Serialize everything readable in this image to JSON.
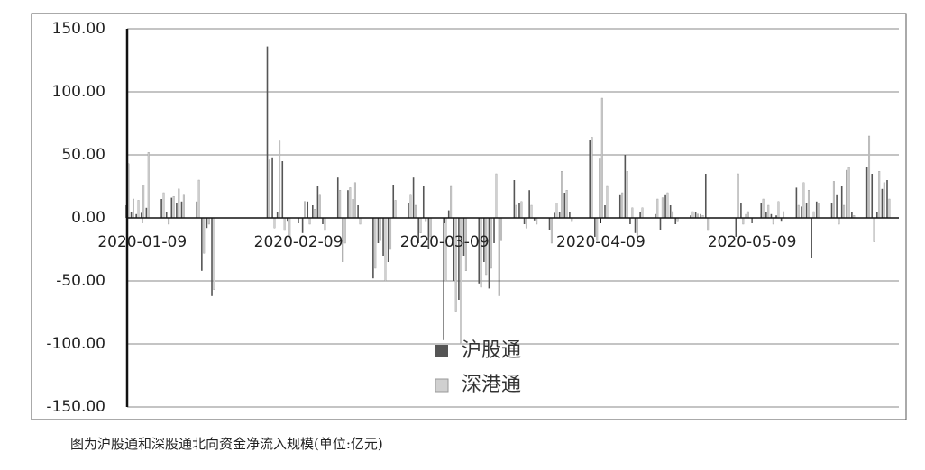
{
  "chart_data": {
    "type": "bar",
    "x": [
      "2020-01-06",
      "2020-01-07",
      "2020-01-08",
      "2020-01-09",
      "2020-01-10",
      "2020-01-13",
      "2020-01-14",
      "2020-01-15",
      "2020-01-16",
      "2020-01-17",
      "2020-01-20",
      "2020-01-21",
      "2020-01-22",
      "2020-01-23",
      "2020-02-03",
      "2020-02-04",
      "2020-02-05",
      "2020-02-06",
      "2020-02-07",
      "2020-02-10",
      "2020-02-11",
      "2020-02-12",
      "2020-02-13",
      "2020-02-14",
      "2020-02-17",
      "2020-02-18",
      "2020-02-19",
      "2020-02-20",
      "2020-02-21",
      "2020-02-24",
      "2020-02-25",
      "2020-02-26",
      "2020-02-27",
      "2020-02-28",
      "2020-03-02",
      "2020-03-03",
      "2020-03-04",
      "2020-03-05",
      "2020-03-06",
      "2020-03-09",
      "2020-03-10",
      "2020-03-11",
      "2020-03-12",
      "2020-03-13",
      "2020-03-16",
      "2020-03-17",
      "2020-03-18",
      "2020-03-19",
      "2020-03-20",
      "2020-03-23",
      "2020-03-24",
      "2020-03-25",
      "2020-03-26",
      "2020-03-27",
      "2020-03-30",
      "2020-03-31",
      "2020-04-01",
      "2020-04-02",
      "2020-04-03",
      "2020-04-07",
      "2020-04-08",
      "2020-04-09",
      "2020-04-10",
      "2020-04-13",
      "2020-04-14",
      "2020-04-15",
      "2020-04-16",
      "2020-04-17",
      "2020-04-20",
      "2020-04-21",
      "2020-04-22",
      "2020-04-23",
      "2020-04-24",
      "2020-04-27",
      "2020-04-28",
      "2020-04-29",
      "2020-04-30",
      "2020-05-06",
      "2020-05-07",
      "2020-05-08",
      "2020-05-11",
      "2020-05-12",
      "2020-05-13",
      "2020-05-14",
      "2020-05-15",
      "2020-05-18",
      "2020-05-19",
      "2020-05-20",
      "2020-05-21",
      "2020-05-22",
      "2020-05-25",
      "2020-05-26",
      "2020-05-27",
      "2020-05-28",
      "2020-05-29",
      "2020-06-01",
      "2020-06-02",
      "2020-06-03",
      "2020-06-04",
      "2020-06-05"
    ],
    "series": [
      {
        "name": "沪股通",
        "color": "#555555",
        "values": [
          10,
          5,
          3,
          4,
          8,
          15,
          5,
          16,
          12,
          13,
          13,
          -42,
          -8,
          -62,
          136,
          48,
          5,
          45,
          -3,
          -12,
          13,
          10,
          25,
          -5,
          32,
          -35,
          22,
          15,
          10,
          -48,
          -20,
          -30,
          -35,
          26,
          12,
          32,
          -20,
          25,
          -25,
          -97,
          6,
          -50,
          -65,
          -30,
          -52,
          -35,
          -56,
          -20,
          -62,
          30,
          12,
          -5,
          22,
          -2,
          -10,
          4,
          5,
          20,
          5,
          62,
          -15,
          47,
          10,
          18,
          50,
          -5,
          -12,
          5,
          3,
          -10,
          18,
          10,
          -5,
          2,
          5,
          3,
          35,
          -15,
          12,
          3,
          12,
          5,
          3,
          2,
          -3,
          24,
          9,
          12,
          -32,
          13,
          12,
          18,
          25,
          38,
          5,
          40,
          35,
          5,
          23,
          30
        ]
      },
      {
        "name": "深港通",
        "color": "#d0d0d0",
        "values": [
          43,
          15,
          14,
          26,
          52,
          20,
          -5,
          17,
          23,
          18,
          30,
          -28,
          -5,
          -57,
          46,
          -8,
          61,
          -10,
          -15,
          13,
          -5,
          7,
          18,
          -10,
          22,
          -20,
          24,
          28,
          -5,
          -40,
          -18,
          -50,
          -25,
          14,
          18,
          10,
          -12,
          -3,
          -15,
          -50,
          25,
          -74,
          -100,
          -42,
          -55,
          -45,
          -40,
          35,
          -18,
          10,
          13,
          -8,
          10,
          -5,
          -20,
          12,
          37,
          22,
          -3,
          64,
          -18,
          95,
          25,
          20,
          37,
          8,
          -15,
          8,
          15,
          16,
          20,
          5,
          -3,
          5,
          3,
          2,
          -10,
          35,
          -5,
          5,
          15,
          10,
          -5,
          13,
          5,
          10,
          28,
          22,
          5,
          12,
          29,
          -5,
          10,
          40,
          2,
          65,
          -19,
          37,
          28,
          15
        ]
      }
    ],
    "xlim": [
      "2020-01-06",
      "2020-06-05"
    ],
    "xticks": [
      "2020-01-09",
      "2020-02-09",
      "2020-03-09",
      "2020-04-09",
      "2020-05-09"
    ],
    "ylim": [
      -150,
      150
    ],
    "yticks": [
      {
        "value": -150,
        "label": "-150.00"
      },
      {
        "value": -100,
        "label": "-100.00"
      },
      {
        "value": -50,
        "label": "-50.00"
      },
      {
        "value": 0,
        "label": "0.00"
      },
      {
        "value": 50,
        "label": "50.00"
      },
      {
        "value": 100,
        "label": "100.00"
      },
      {
        "value": 150,
        "label": "150.00"
      }
    ],
    "grid": true
  },
  "caption": "图为沪股通和深股通北向资金净流入规模(单位:亿元)"
}
